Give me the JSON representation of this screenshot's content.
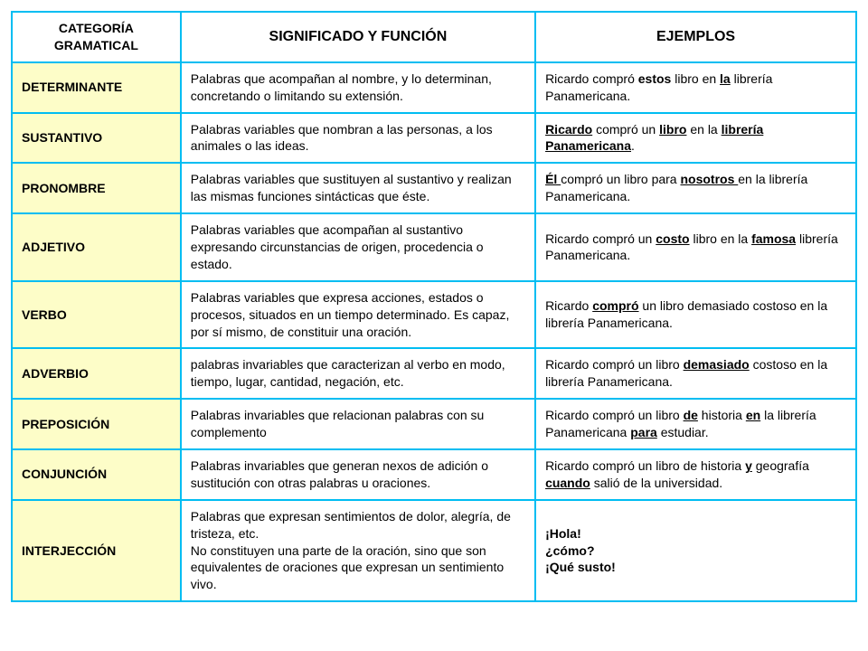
{
  "colors": {
    "border": "#00bdf2",
    "category_bg": "#fdfdc8",
    "page_bg": "#ffffff",
    "text": "#000000"
  },
  "typography": {
    "font_family": "Arial",
    "header_fontsize_pt": 12,
    "header_large_fontsize_pt": 13,
    "body_fontsize_pt": 10
  },
  "layout": {
    "column_widths_pct": [
      20,
      42,
      38
    ],
    "row_count": 9
  },
  "headers": {
    "col1": "CATEGORÍA GRAMATICAL",
    "col2": "SIGNIFICADO Y FUNCIÓN",
    "col3": "EJEMPLOS"
  },
  "rows": [
    {
      "category": "DETERMINANTE",
      "definition": "Palabras que acompañan al nombre, y lo determinan, concretando o limitando su extensión.",
      "example_html": "Ricardo compró <span class='b'>estos</span> libro en <span class='bu'>la</span> librería Panamericana."
    },
    {
      "category": "SUSTANTIVO",
      "definition": "Palabras variables que nombran a las personas, a los animales o las ideas.",
      "example_html": "<span class='bu'>Ricardo</span> compró un <span class='bu'>libro</span> en la <span class='bu'>librería Panamericana</span>."
    },
    {
      "category": "PRONOMBRE",
      "definition": "Palabras variables que sustituyen al sustantivo y realizan las mismas funciones sintácticas que éste.",
      "example_html": "<span class='bu'>Él </span>compró un libro para <span class='bu'>nosotros </span>en la librería Panamericana."
    },
    {
      "category": "ADJETIVO",
      "definition": "Palabras variables que acompañan al sustantivo expresando circunstancias de origen, procedencia o estado.",
      "example_html": "Ricardo compró un <span class='bu'>costo</span> libro en la <span class='bu'>famosa</span> librería Panamericana."
    },
    {
      "category": "VERBO",
      "definition": "Palabras variables que expresa acciones, estados o procesos, situados en un tiempo determinado. Es capaz, por sí mismo, de constituir una oración.",
      "example_html": "Ricardo <span class='bu'>compró</span> un libro demasiado costoso en la librería Panamericana."
    },
    {
      "category": "ADVERBIO",
      "definition": "palabras invariables que caracterizan al verbo en modo, tiempo, lugar, cantidad, negación, etc.",
      "example_html": "Ricardo compró un libro <span class='bu'>demasiado</span> costoso en la librería Panamericana."
    },
    {
      "category": "PREPOSICIÓN",
      "definition": "Palabras invariables que relacionan palabras con su complemento",
      "example_html": "Ricardo compró un libro <span class='bu'>de</span> historia <span class='bu'>en</span> la librería Panamericana <span class='bu'>para</span> estudiar."
    },
    {
      "category": "CONJUNCIÓN",
      "definition": "Palabras invariables que generan nexos de adición o sustitución con otras palabras u oraciones.",
      "example_html": "Ricardo compró un libro de historia <span class='bu'>y</span> geografía <span class='bu'>cuando</span> salió de la universidad."
    },
    {
      "category": "INTERJECCIÓN",
      "definition": "Palabras que expresan sentimientos de dolor, alegría, de tristeza, etc.\nNo constituyen una parte de la oración, sino que son equivalentes de oraciones que expresan un sentimiento vivo.",
      "example_html": "<span class='b'>¡Hola!</span><br><span class='b'>¿cómo?</span><br><span class='b'>¡Qué susto!</span>"
    }
  ]
}
